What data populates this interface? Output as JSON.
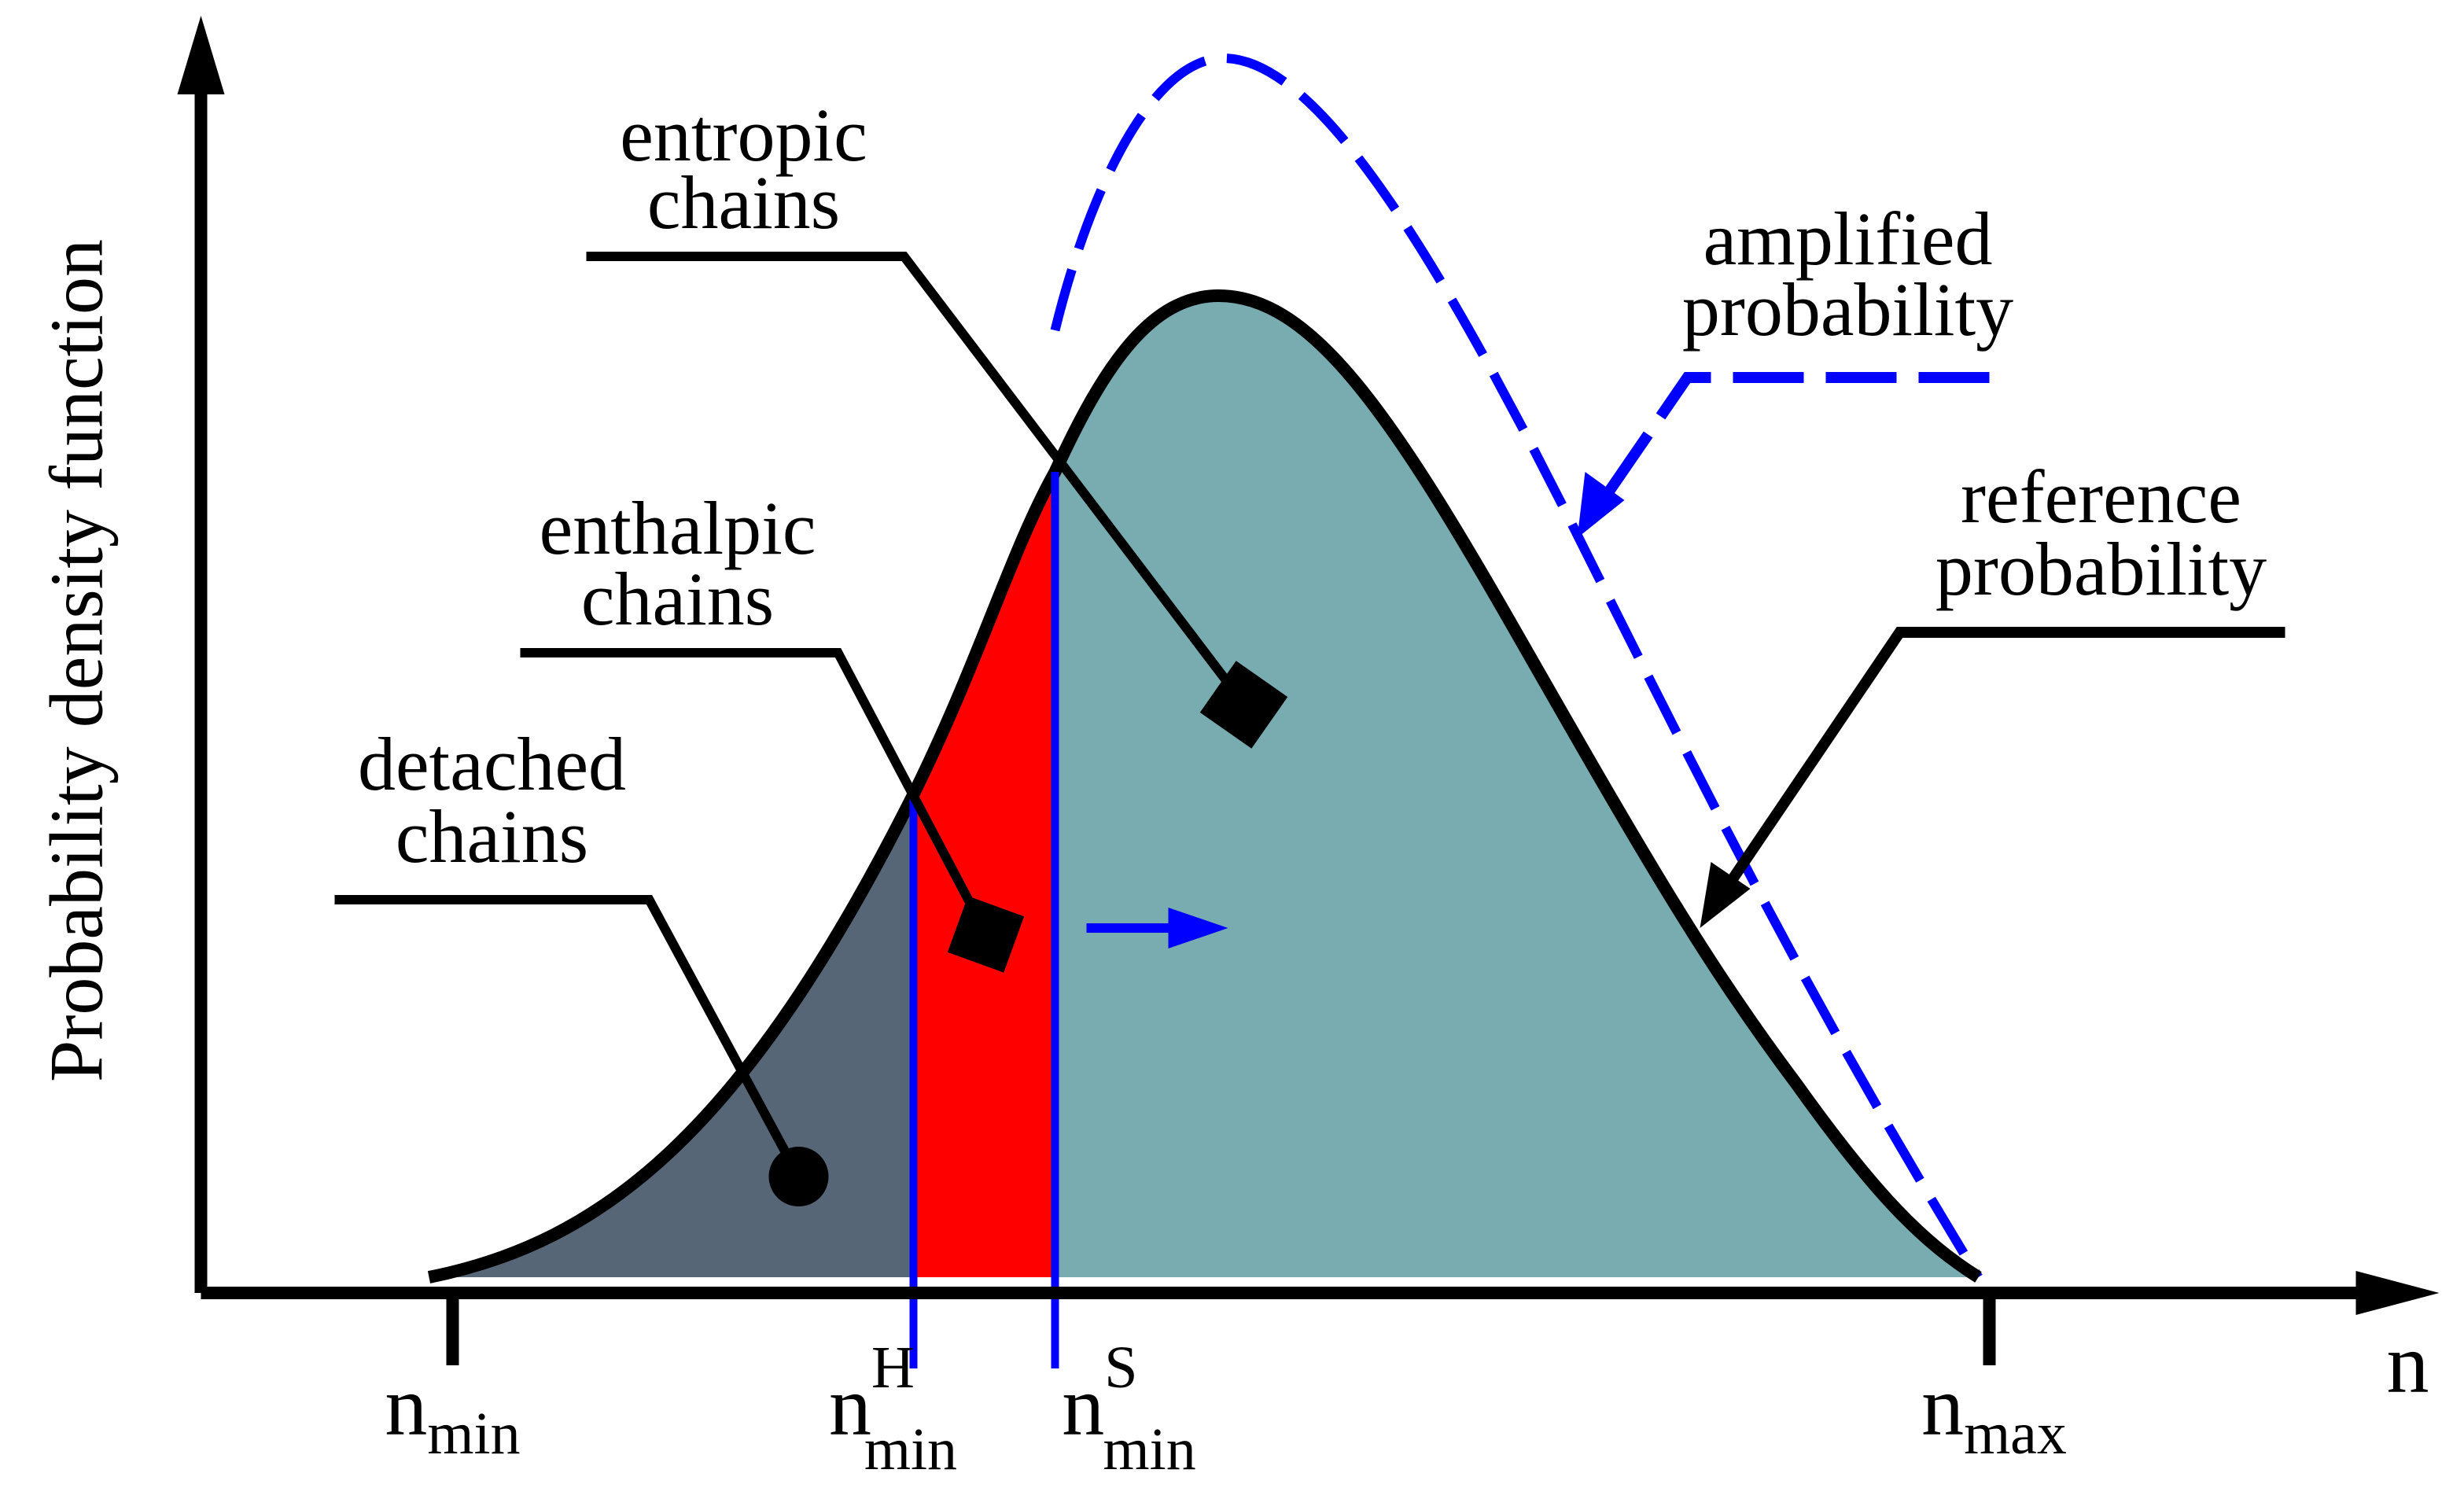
{
  "y_axis_label": "Probability density function",
  "x_axis_label": "n",
  "tick_labels": [
    {
      "base": "n",
      "sub": "min"
    },
    {
      "base": "n",
      "sup": "H",
      "sub": "min"
    },
    {
      "base": "n",
      "sup": "S",
      "sub": "min"
    },
    {
      "base": "n",
      "sub": "max"
    }
  ],
  "annotations": {
    "entropic": [
      "entropic",
      "chains"
    ],
    "enthalpic": [
      "enthalpic",
      "chains"
    ],
    "detached": [
      "detached",
      "chains"
    ],
    "amplified": [
      "amplified",
      "probability"
    ],
    "reference": [
      "reference",
      "probability"
    ]
  }
}
